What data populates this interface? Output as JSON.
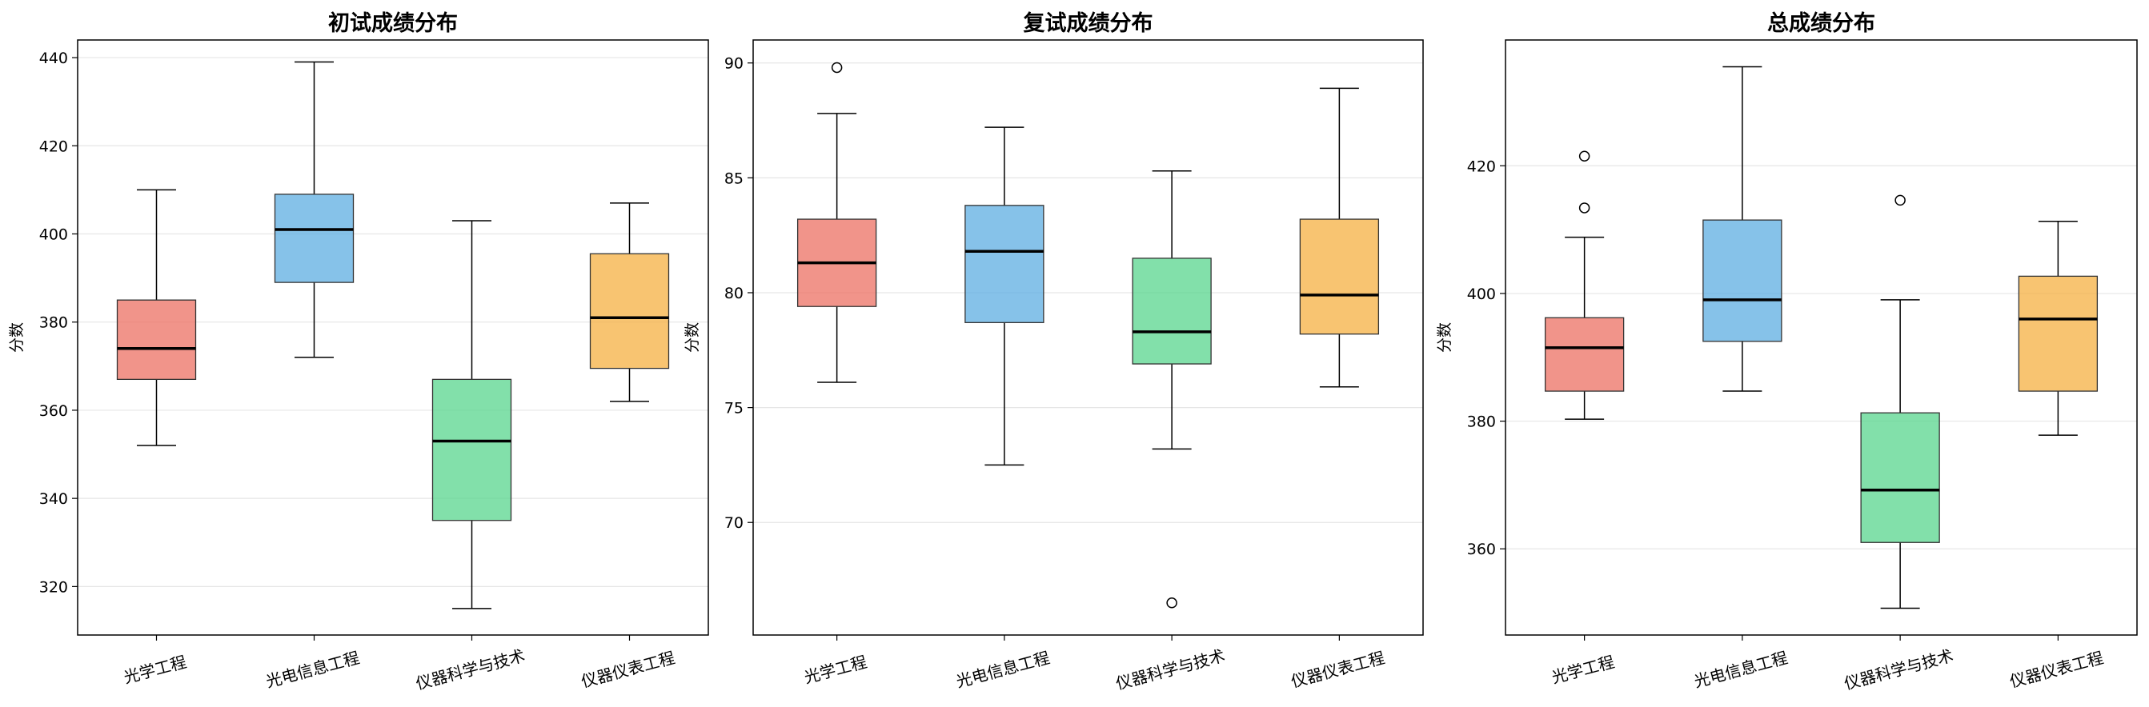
{
  "chart_data": [
    {
      "type": "box",
      "title": "初试成绩分布",
      "ylabel": "分数",
      "categories": [
        "光学工程",
        "光电信息工程",
        "仪器科学与技术",
        "仪器仪表工程"
      ],
      "ylim": [
        309,
        444
      ],
      "yticks": [
        320,
        340,
        360,
        380,
        400,
        420,
        440
      ],
      "grid": "y",
      "boxes": [
        {
          "whisker_low": 352,
          "q1": 367,
          "median": 374,
          "q3": 385,
          "whisker_high": 410,
          "outliers": []
        },
        {
          "whisker_low": 372,
          "q1": 389,
          "median": 401,
          "q3": 409,
          "whisker_high": 439,
          "outliers": []
        },
        {
          "whisker_low": 315,
          "q1": 335,
          "median": 353,
          "q3": 367,
          "whisker_high": 403,
          "outliers": []
        },
        {
          "whisker_low": 362,
          "q1": 369.5,
          "median": 381,
          "q3": 395.5,
          "whisker_high": 407,
          "outliers": []
        }
      ]
    },
    {
      "type": "box",
      "title": "复试成绩分布",
      "ylabel": "分数",
      "categories": [
        "光学工程",
        "光电信息工程",
        "仪器科学与技术",
        "仪器仪表工程"
      ],
      "ylim": [
        65.1,
        91.0
      ],
      "yticks": [
        70,
        75,
        80,
        85,
        90
      ],
      "grid": "y",
      "boxes": [
        {
          "whisker_low": 76.1,
          "q1": 79.4,
          "median": 81.3,
          "q3": 83.2,
          "whisker_high": 87.8,
          "outliers": [
            89.8
          ]
        },
        {
          "whisker_low": 72.5,
          "q1": 78.7,
          "median": 81.8,
          "q3": 83.8,
          "whisker_high": 87.2,
          "outliers": []
        },
        {
          "whisker_low": 73.2,
          "q1": 76.9,
          "median": 78.3,
          "q3": 81.5,
          "whisker_high": 85.3,
          "outliers": [
            66.5
          ]
        },
        {
          "whisker_low": 75.9,
          "q1": 78.2,
          "median": 79.9,
          "q3": 83.2,
          "whisker_high": 88.9,
          "outliers": []
        }
      ]
    },
    {
      "type": "box",
      "title": "总成绩分布",
      "ylabel": "分数",
      "categories": [
        "光学工程",
        "光电信息工程",
        "仪器科学与技术",
        "仪器仪表工程"
      ],
      "ylim": [
        346.5,
        439.7
      ],
      "yticks": [
        360,
        380,
        400,
        420
      ],
      "grid": "y",
      "boxes": [
        {
          "whisker_low": 380.3,
          "q1": 384.7,
          "median": 391.5,
          "q3": 396.2,
          "whisker_high": 408.8,
          "outliers": [
            413.4,
            421.5
          ]
        },
        {
          "whisker_low": 384.7,
          "q1": 392.5,
          "median": 399.0,
          "q3": 411.5,
          "whisker_high": 435.5,
          "outliers": []
        },
        {
          "whisker_low": 350.7,
          "q1": 361.0,
          "median": 369.2,
          "q3": 381.3,
          "whisker_high": 399.0,
          "outliers": [
            414.6
          ]
        },
        {
          "whisker_low": 377.8,
          "q1": 384.7,
          "median": 396.0,
          "q3": 402.7,
          "whisker_high": 411.3,
          "outliers": []
        }
      ]
    }
  ],
  "colors": {
    "boxes": [
      "#ec7063",
      "#5dade2",
      "#58d68d",
      "#f5b041"
    ],
    "grid": "#e6e6e6",
    "axis": "#000000"
  }
}
